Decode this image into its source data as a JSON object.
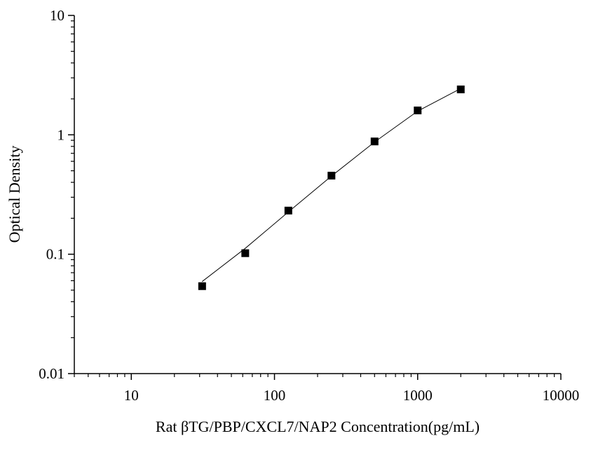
{
  "chart_data": {
    "type": "scatter",
    "title": "",
    "xlabel": "Rat βTG/PBP/CXCL7/NAP2  Concentration(pg/mL)",
    "ylabel": "Optical Density",
    "x_scale": "log",
    "y_scale": "log",
    "xlim": [
      4,
      10000
    ],
    "ylim": [
      0.01,
      10
    ],
    "x_ticks": [
      10,
      100,
      1000,
      10000
    ],
    "x_tick_labels": [
      "10",
      "100",
      "1000",
      "10000"
    ],
    "y_ticks": [
      0.01,
      0.1,
      1,
      10
    ],
    "y_tick_labels": [
      "0.01",
      "0.1",
      "1",
      "10"
    ],
    "grid": false,
    "legend": "none",
    "colors": {
      "marker": "#000000",
      "line": "#000000",
      "axis": "#000000"
    },
    "series": [
      {
        "marker": "square",
        "x": [
          31.25,
          62.5,
          125,
          250,
          500,
          1000,
          2000
        ],
        "y": [
          0.054,
          0.102,
          0.232,
          0.455,
          0.88,
          1.6,
          2.4
        ]
      }
    ],
    "fit_curve": {
      "x": [
        31.25,
        62.5,
        125,
        250,
        500,
        1000,
        2000
      ],
      "y": [
        0.059,
        0.112,
        0.226,
        0.451,
        0.87,
        1.58,
        2.44
      ]
    }
  }
}
